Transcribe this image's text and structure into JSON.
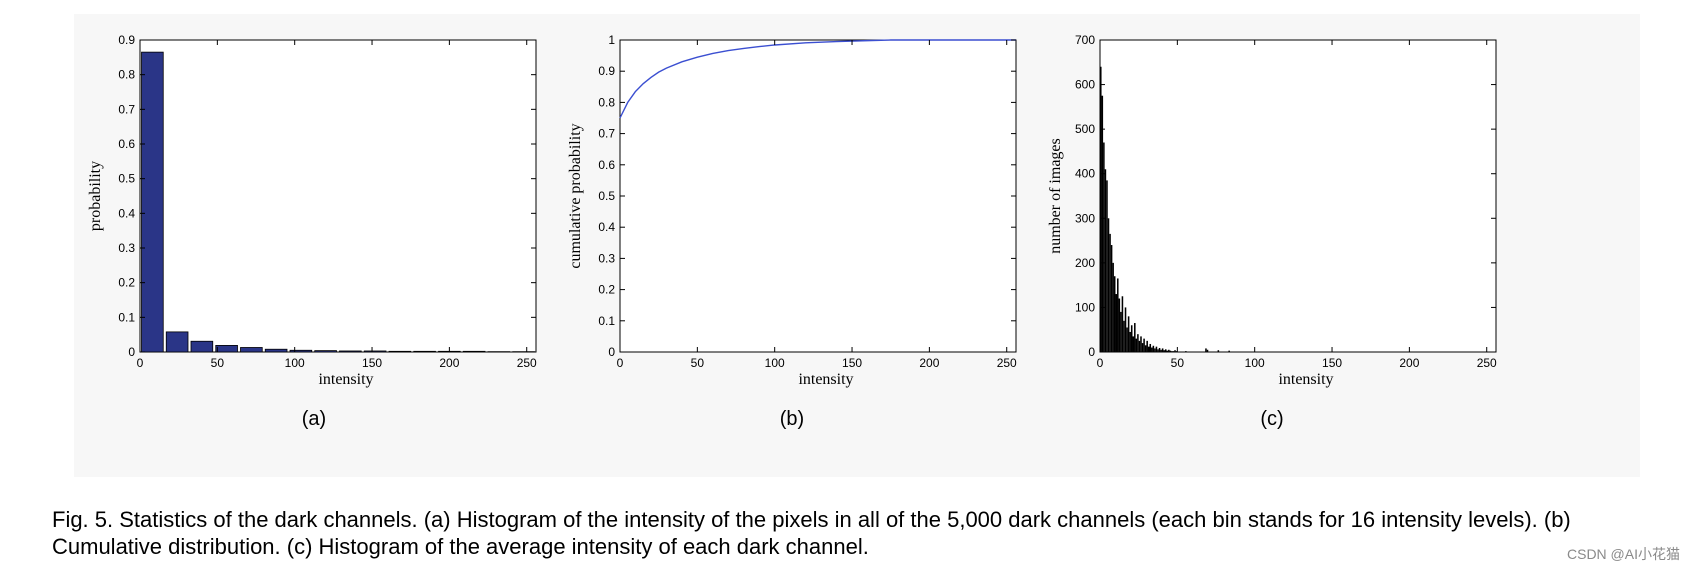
{
  "chart_data": [
    {
      "type": "bar",
      "panel": "(a)",
      "xlabel": "intensity",
      "ylabel": "probability",
      "xlim": [
        0,
        256
      ],
      "ylim": [
        0,
        0.9
      ],
      "xticks": [
        0,
        50,
        100,
        150,
        200,
        250
      ],
      "yticks": [
        0,
        0.1,
        0.2,
        0.3,
        0.4,
        0.5,
        0.6,
        0.7,
        0.8,
        0.9
      ],
      "bin_width": 16,
      "x": [
        8,
        24,
        40,
        56,
        72,
        88,
        104,
        120,
        136,
        152,
        168,
        184,
        200,
        216,
        232,
        248
      ],
      "values": [
        0.865,
        0.058,
        0.031,
        0.019,
        0.013,
        0.008,
        0.005,
        0.004,
        0.003,
        0.003,
        0.002,
        0.002,
        0.002,
        0.002,
        0.001,
        0.001
      ],
      "bar_color": "#2a3587"
    },
    {
      "type": "line",
      "panel": "(b)",
      "xlabel": "intensity",
      "ylabel": "cumulative probability",
      "xlim": [
        0,
        256
      ],
      "ylim": [
        0,
        1
      ],
      "xticks": [
        0,
        50,
        100,
        150,
        200,
        250
      ],
      "yticks": [
        0,
        0.1,
        0.2,
        0.3,
        0.4,
        0.5,
        0.6,
        0.7,
        0.8,
        0.9,
        1
      ],
      "x": [
        0,
        5,
        10,
        15,
        20,
        25,
        30,
        40,
        50,
        60,
        70,
        80,
        90,
        100,
        120,
        140,
        160,
        175,
        200,
        256
      ],
      "y": [
        0.75,
        0.8,
        0.835,
        0.86,
        0.88,
        0.897,
        0.91,
        0.93,
        0.945,
        0.957,
        0.966,
        0.973,
        0.979,
        0.984,
        0.991,
        0.995,
        0.998,
        1.0,
        1.0,
        1.0
      ],
      "line_color": "#3b4fd1"
    },
    {
      "type": "bar",
      "panel": "(c)",
      "xlabel": "intensity",
      "ylabel": "number of images",
      "xlim": [
        0,
        256
      ],
      "ylim": [
        0,
        700
      ],
      "xticks": [
        0,
        50,
        100,
        150,
        200,
        250
      ],
      "yticks": [
        0,
        100,
        200,
        300,
        400,
        500,
        600,
        700
      ],
      "bin_width": 1,
      "x": [
        0,
        1,
        2,
        3,
        4,
        5,
        6,
        7,
        8,
        9,
        10,
        11,
        12,
        13,
        14,
        15,
        16,
        17,
        18,
        19,
        20,
        21,
        22,
        23,
        24,
        25,
        26,
        27,
        28,
        29,
        30,
        31,
        32,
        33,
        34,
        35,
        36,
        37,
        38,
        39,
        40,
        41,
        42,
        43,
        44,
        45,
        46,
        47,
        48,
        49,
        50,
        55,
        68,
        69,
        76,
        83
      ],
      "values": [
        640,
        575,
        470,
        410,
        385,
        300,
        265,
        240,
        200,
        170,
        130,
        165,
        120,
        90,
        125,
        70,
        100,
        55,
        80,
        45,
        60,
        35,
        65,
        30,
        40,
        25,
        35,
        20,
        30,
        15,
        25,
        12,
        18,
        10,
        14,
        8,
        12,
        6,
        9,
        5,
        8,
        4,
        6,
        3,
        5,
        3,
        2,
        2,
        4,
        2,
        1,
        2,
        8,
        5,
        4,
        3
      ],
      "bar_color": "#000000"
    }
  ],
  "caption": "Fig. 5. Statistics of the dark channels. (a) Histogram of the intensity of the pixels in all of the 5,000 dark channels (each bin stands for 16 intensity levels). (b) Cumulative distribution. (c) Histogram of the average intensity of each dark channel.",
  "watermark": "CSDN @AI小花猫"
}
